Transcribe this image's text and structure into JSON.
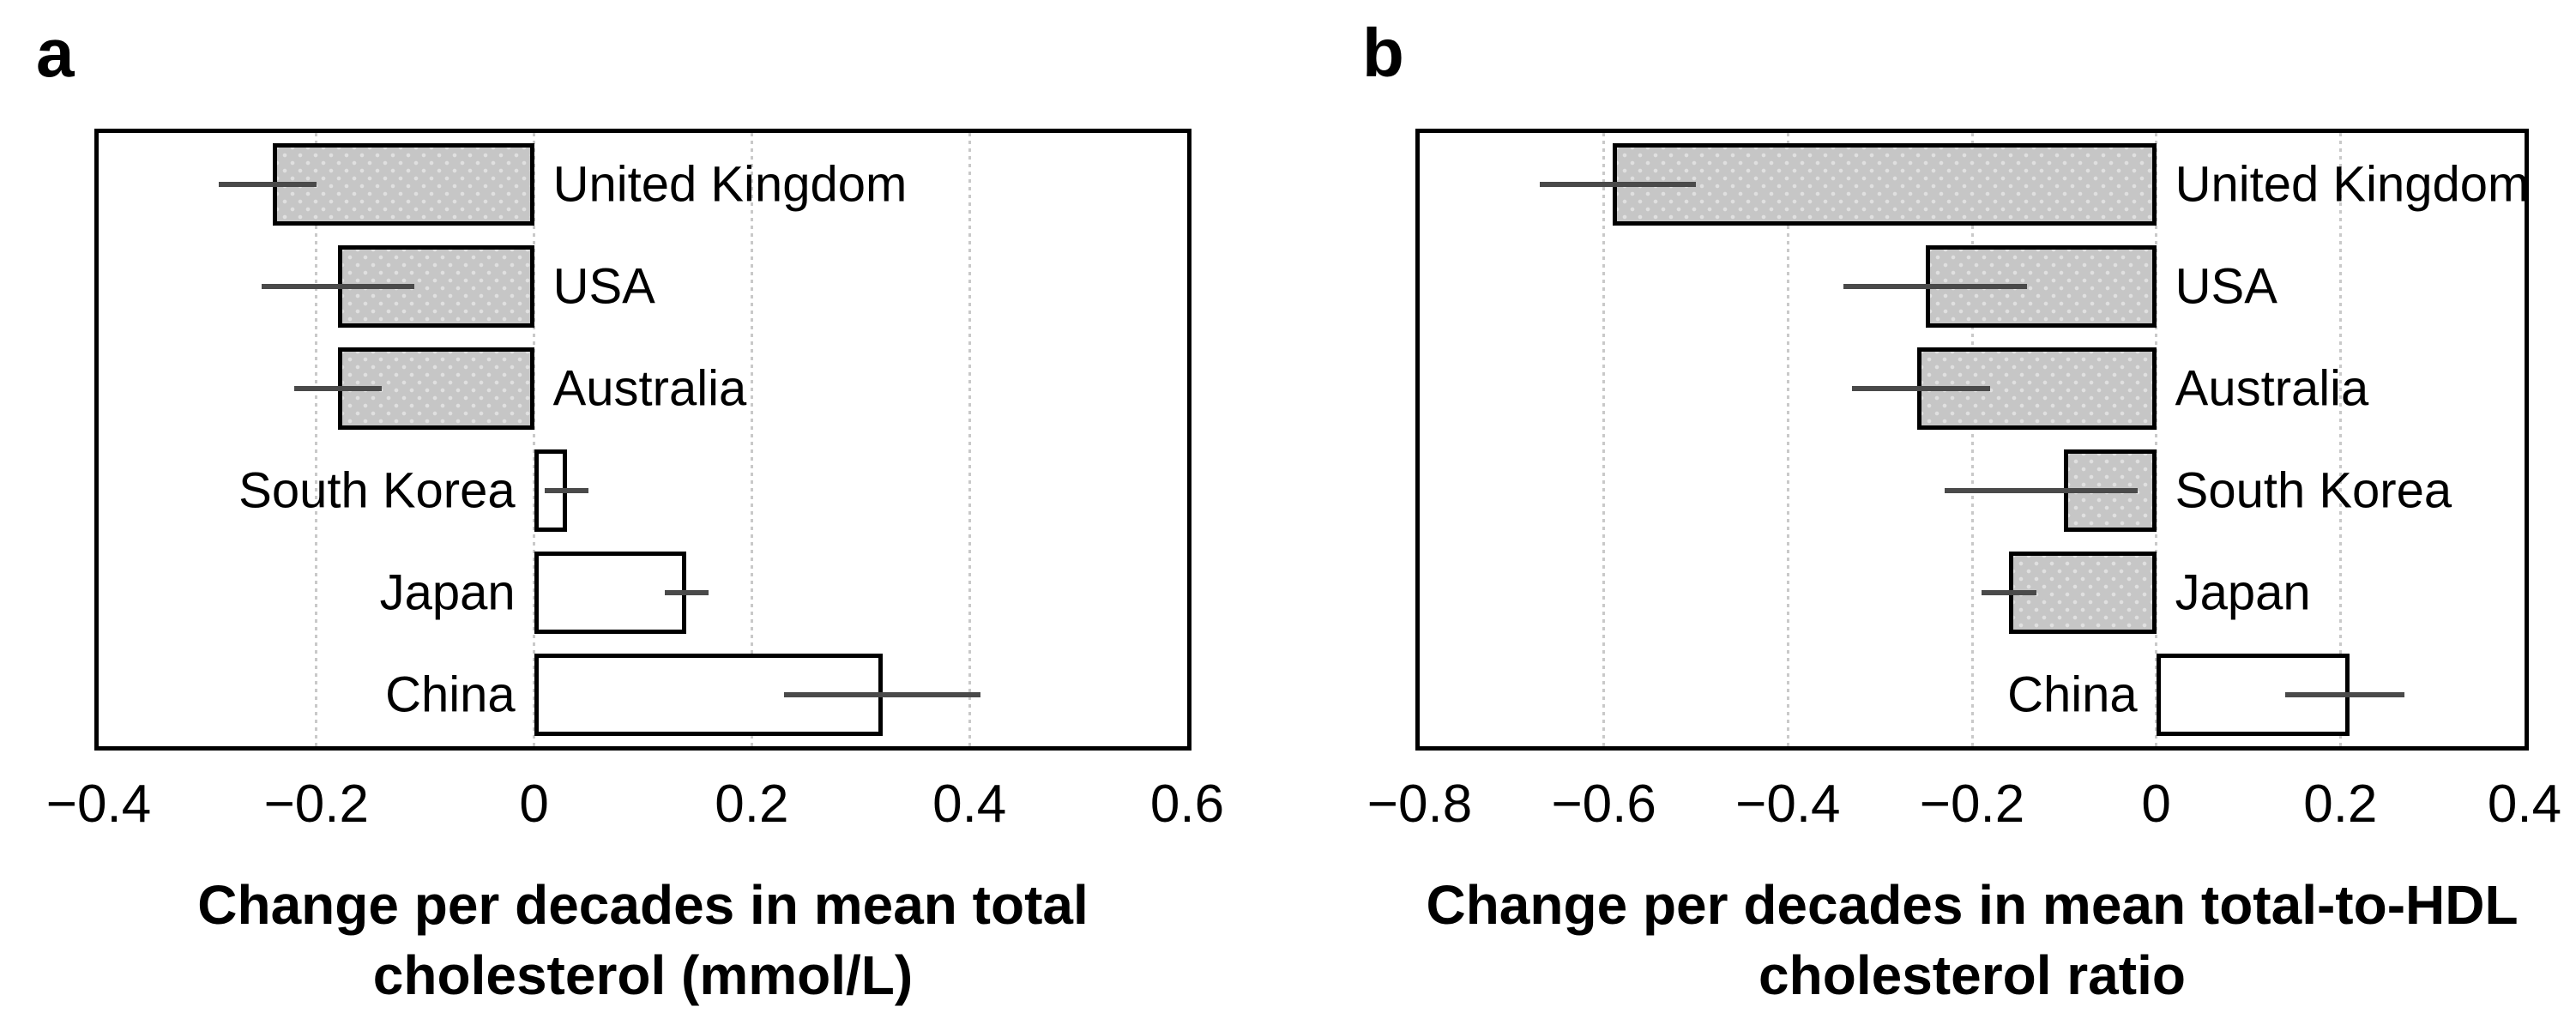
{
  "figure": {
    "background": "#ffffff",
    "style": {
      "bar_gray_fill": "#c6c6c6",
      "bar_white_fill": "#ffffff",
      "bar_border": "#000000",
      "error_bar_color": "#4a4a4a",
      "gridline_color": "#c9c9c9",
      "text_color": "#000000"
    }
  },
  "chart_data": [
    {
      "type": "bar",
      "orientation": "horizontal",
      "panel_letter": "a",
      "xlabel_line1": "Change per decades in mean total",
      "xlabel_line2": "cholesterol (mmol/L)",
      "categories": [
        "United Kingdom",
        "USA",
        "Australia",
        "South Korea",
        "Japan",
        "China"
      ],
      "values": [
        -0.24,
        -0.18,
        -0.18,
        0.03,
        0.14,
        0.32
      ],
      "ci_low": [
        -0.29,
        -0.25,
        -0.22,
        0.01,
        0.12,
        0.23
      ],
      "ci_high": [
        -0.2,
        -0.11,
        -0.14,
        0.05,
        0.16,
        0.41
      ],
      "bar_fill": [
        "gray",
        "gray",
        "gray",
        "white",
        "white",
        "white"
      ],
      "xlim": [
        -0.4,
        0.6
      ],
      "xtick_values": [
        -0.4,
        -0.2,
        0,
        0.2,
        0.4,
        0.6
      ],
      "xtick_labels": [
        "−0.4",
        "−0.2",
        "0",
        "0.2",
        "0.4",
        "0.6"
      ],
      "gridline_values": [
        -0.2,
        0,
        0.2,
        0.4
      ],
      "grid": "dotted-vertical",
      "legend": "none"
    },
    {
      "type": "bar",
      "orientation": "horizontal",
      "panel_letter": "b",
      "xlabel_line1": "Change per decades in mean total-to-HDL",
      "xlabel_line2": "cholesterol ratio",
      "categories": [
        "United Kingdom",
        "USA",
        "Australia",
        "South Korea",
        "Japan",
        "China"
      ],
      "values": [
        -0.59,
        -0.25,
        -0.26,
        -0.1,
        -0.16,
        0.21
      ],
      "ci_low": [
        -0.67,
        -0.34,
        -0.33,
        -0.23,
        -0.19,
        0.14
      ],
      "ci_high": [
        -0.5,
        -0.14,
        -0.18,
        -0.02,
        -0.13,
        0.27
      ],
      "bar_fill": [
        "gray",
        "gray",
        "gray",
        "gray",
        "gray",
        "white"
      ],
      "xlim": [
        -0.8,
        0.4
      ],
      "xtick_values": [
        -0.8,
        -0.6,
        -0.4,
        -0.2,
        0,
        0.2,
        0.4
      ],
      "xtick_labels": [
        "−0.8",
        "−0.6",
        "−0.4",
        "−0.2",
        "0",
        "0.2",
        "0.4"
      ],
      "gridline_values": [
        -0.6,
        -0.4,
        -0.2,
        0,
        0.2
      ],
      "grid": "dotted-vertical",
      "legend": "none"
    }
  ]
}
